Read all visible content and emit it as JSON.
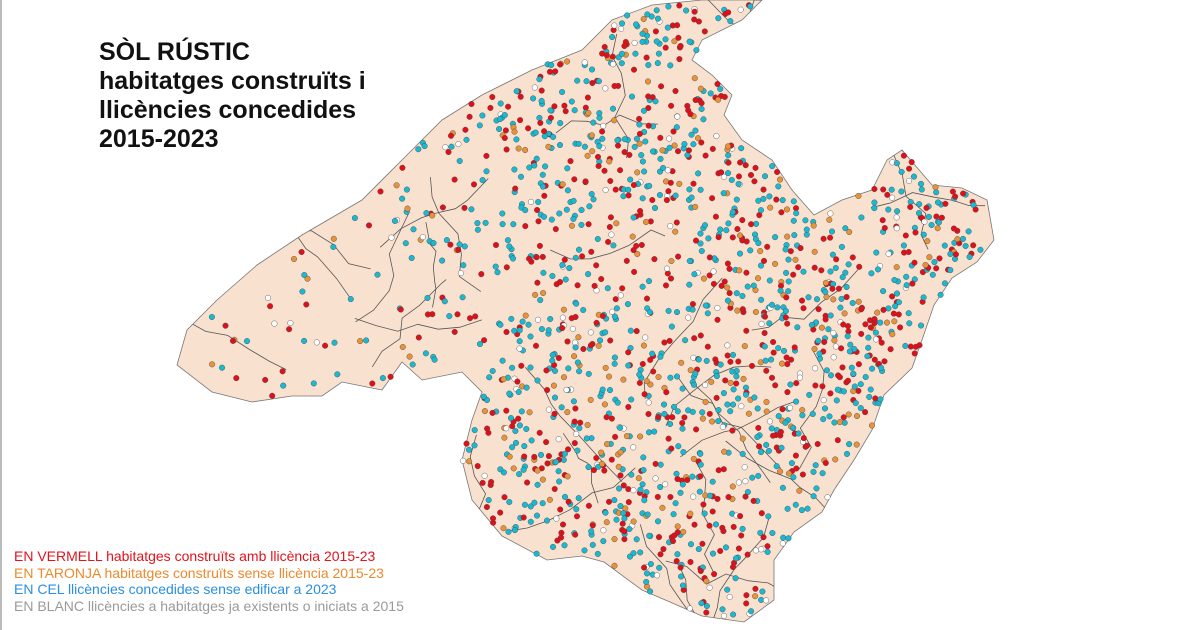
{
  "title": {
    "lines": [
      "SÒL RÚSTIC",
      "habitatges construïts i",
      "llicències concedides",
      "2015-2023"
    ]
  },
  "legend": [
    {
      "text": "EN VERMELL habitatges construïts amb llicència 2015-23",
      "color": "#e3121c"
    },
    {
      "text": "EN TARONJA habitatges construïts sense llicència 2015-23",
      "color": "#ec8a2c"
    },
    {
      "text": "EN CEL llicències concedides sense edificar a 2023",
      "color": "#2a8fe0"
    },
    {
      "text": "EN BLANC llicències a habitatges ja existents o iniciats a 2015",
      "color": "#9a9a9a"
    }
  ],
  "map": {
    "land_color": "#f9e1cf",
    "border_color": "#555555",
    "point_colors": {
      "red": "#e0101a",
      "orange": "#e8923a",
      "cyan": "#19b9d2",
      "white": "#ffffff"
    }
  }
}
